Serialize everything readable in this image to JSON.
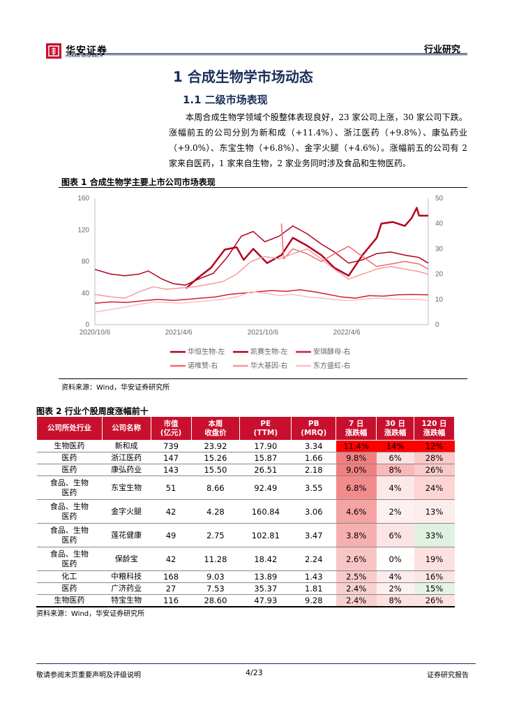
{
  "header": {
    "logo_text": "华安证券",
    "logo_sub": "HUAAN RESEARCH",
    "section": "行业研究"
  },
  "h1": "1 合成生物学市场动态",
  "h2": "1.1 二级市场表现",
  "paragraph": "本周合成生物学领域个股整体表现良好，23 家公司上涨，30 家公司下跌。涨幅前五的公司分别为新和成（+11.4%）、浙江医药（+9.8%）、康弘药业（+9.0%）、东宝生物（+6.8%）、金字火腿（+4.6%）。涨幅前五的公司有 2 家来自医药，1 家来自生物，2 家业务同时涉及食品和生物医药。",
  "figure1": {
    "title": "图表 1 合成生物学主要上市公司市场表现",
    "source": "资料来源：Wind，华安证券研究所"
  },
  "chart_data": {
    "type": "line",
    "x_ticks": [
      "2020/10/6",
      "2021/4/6",
      "2021/10/6",
      "2022/4/6"
    ],
    "x_range": [
      "2020/10/6",
      "2022/9/30"
    ],
    "ylim_left": [
      0,
      160
    ],
    "yticks_left": [
      0,
      40,
      80,
      120,
      160
    ],
    "ylim_right": [
      0,
      50
    ],
    "yticks_right": [
      0,
      10,
      20,
      30,
      40,
      50
    ],
    "legend_position": "bottom",
    "series": [
      {
        "name": "华恒生物-左",
        "axis": "left",
        "color": "#b3001b",
        "width": 2.5,
        "points": [
          [
            "2021/4/22",
            46
          ],
          [
            "2021/5/15",
            58
          ],
          [
            "2021/6/15",
            72
          ],
          [
            "2021/7/15",
            95
          ],
          [
            "2021/8/10",
            98
          ],
          [
            "2021/8/25",
            82
          ],
          [
            "2021/9/15",
            96
          ],
          [
            "2021/10/15",
            78
          ],
          [
            "2021/11/15",
            88
          ],
          [
            "2021/12/10",
            110
          ],
          [
            "2022/1/10",
            100
          ],
          [
            "2022/2/10",
            88
          ],
          [
            "2022/3/10",
            72
          ],
          [
            "2022/4/10",
            62
          ],
          [
            "2022/5/10",
            88
          ],
          [
            "2022/6/10",
            110
          ],
          [
            "2022/6/20",
            128
          ],
          [
            "2022/7/15",
            130
          ],
          [
            "2022/8/10",
            125
          ],
          [
            "2022/8/25",
            135
          ],
          [
            "2022/9/5",
            148
          ],
          [
            "2022/9/10",
            138
          ],
          [
            "2022/9/30",
            138
          ]
        ]
      },
      {
        "name": "凯赛生物-左",
        "axis": "left",
        "color": "#b3001b",
        "width": 1.5,
        "points": [
          [
            "2020/10/6",
            70
          ],
          [
            "2020/11/10",
            64
          ],
          [
            "2020/12/10",
            62
          ],
          [
            "2021/1/10",
            64
          ],
          [
            "2021/1/30",
            68
          ],
          [
            "2021/2/28",
            58
          ],
          [
            "2021/3/25",
            52
          ],
          [
            "2021/4/20",
            50
          ],
          [
            "2021/5/20",
            58
          ],
          [
            "2021/6/20",
            65
          ],
          [
            "2021/7/20",
            85
          ],
          [
            "2021/8/20",
            112
          ],
          [
            "2021/9/15",
            118
          ],
          [
            "2021/10/10",
            105
          ],
          [
            "2021/11/10",
            112
          ],
          [
            "2021/12/10",
            125
          ],
          [
            "2022/1/10",
            115
          ],
          [
            "2022/2/10",
            102
          ],
          [
            "2022/3/10",
            92
          ],
          [
            "2022/4/10",
            78
          ],
          [
            "2022/5/10",
            82
          ],
          [
            "2022/6/10",
            90
          ],
          [
            "2022/7/10",
            92
          ],
          [
            "2022/8/10",
            88
          ],
          [
            "2022/9/10",
            85
          ],
          [
            "2022/9/30",
            78
          ]
        ]
      },
      {
        "name": "安琪酵母-右",
        "axis": "right",
        "color": "#d21e32",
        "width": 1.5,
        "points": [
          [
            "2020/10/6",
            8.5
          ],
          [
            "2020/11/10",
            9
          ],
          [
            "2020/12/15",
            8.8
          ],
          [
            "2021/1/20",
            9.5
          ],
          [
            "2021/2/20",
            10
          ],
          [
            "2021/3/25",
            9.6
          ],
          [
            "2021/4/25",
            10
          ],
          [
            "2021/5/25",
            10.5
          ],
          [
            "2021/6/25",
            11
          ],
          [
            "2021/7/25",
            12
          ],
          [
            "2021/8/25",
            12.5
          ],
          [
            "2021/9/25",
            13
          ],
          [
            "2021/10/25",
            13.5
          ],
          [
            "2021/11/25",
            13.2
          ],
          [
            "2021/12/25",
            13.8
          ],
          [
            "2022/1/25",
            13
          ],
          [
            "2022/2/25",
            12
          ],
          [
            "2022/3/25",
            11
          ],
          [
            "2022/4/25",
            10.5
          ],
          [
            "2022/5/25",
            11.5
          ],
          [
            "2022/6/25",
            11.3
          ],
          [
            "2022/7/25",
            11.8
          ],
          [
            "2022/8/25",
            12
          ],
          [
            "2022/9/30",
            11.8
          ]
        ]
      },
      {
        "name": "诺唯赞-右",
        "axis": "right",
        "color": "#ee6a6a",
        "width": 1.5,
        "points": [
          [
            "2021/11/15",
            40
          ],
          [
            "2021/11/20",
            26
          ],
          [
            "2021/12/10",
            30
          ],
          [
            "2022/1/10",
            28
          ],
          [
            "2022/2/10",
            25
          ],
          [
            "2022/3/10",
            28
          ],
          [
            "2022/4/10",
            31
          ],
          [
            "2022/5/10",
            27
          ],
          [
            "2022/6/10",
            23
          ],
          [
            "2022/7/10",
            24
          ],
          [
            "2022/8/10",
            25
          ],
          [
            "2022/9/10",
            24
          ],
          [
            "2022/9/30",
            22
          ]
        ]
      },
      {
        "name": "华大基因-右",
        "axis": "right",
        "color": "#f39a9a",
        "width": 1.5,
        "points": [
          [
            "2020/10/6",
            12
          ],
          [
            "2020/11/10",
            11
          ],
          [
            "2020/12/10",
            10.5
          ],
          [
            "2021/1/10",
            13
          ],
          [
            "2021/2/10",
            15
          ],
          [
            "2021/3/10",
            14
          ],
          [
            "2021/4/10",
            14.5
          ],
          [
            "2021/5/10",
            15
          ],
          [
            "2021/6/10",
            16
          ],
          [
            "2021/7/10",
            17
          ],
          [
            "2021/8/10",
            20
          ],
          [
            "2021/9/10",
            25
          ],
          [
            "2021/10/10",
            27
          ],
          [
            "2021/11/10",
            26
          ],
          [
            "2021/12/10",
            28
          ],
          [
            "2022/1/10",
            30
          ],
          [
            "2022/2/10",
            26
          ],
          [
            "2022/3/10",
            22
          ],
          [
            "2022/4/10",
            18
          ],
          [
            "2022/5/10",
            20
          ],
          [
            "2022/6/10",
            22
          ],
          [
            "2022/7/10",
            23
          ],
          [
            "2022/8/10",
            22
          ],
          [
            "2022/9/10",
            21
          ],
          [
            "2022/9/30",
            20
          ]
        ]
      },
      {
        "name": "东方盛虹-右",
        "axis": "right",
        "color": "#f9c0c0",
        "width": 1.5,
        "points": [
          [
            "2020/10/6",
            5
          ],
          [
            "2020/11/10",
            6
          ],
          [
            "2020/12/10",
            7
          ],
          [
            "2021/1/10",
            8
          ],
          [
            "2021/2/10",
            9
          ],
          [
            "2021/3/10",
            8.8
          ],
          [
            "2021/4/10",
            8.5
          ],
          [
            "2021/5/10",
            9
          ],
          [
            "2021/6/10",
            9.5
          ],
          [
            "2021/7/10",
            10
          ],
          [
            "2021/8/10",
            11
          ],
          [
            "2021/9/10",
            13
          ],
          [
            "2021/10/10",
            12.5
          ],
          [
            "2021/11/10",
            11.5
          ],
          [
            "2021/12/10",
            12
          ],
          [
            "2022/1/10",
            11
          ],
          [
            "2022/2/10",
            10.5
          ],
          [
            "2022/3/10",
            10
          ],
          [
            "2022/4/10",
            9.5
          ],
          [
            "2022/5/10",
            10
          ],
          [
            "2022/6/10",
            10.5
          ],
          [
            "2022/7/10",
            10.2
          ],
          [
            "2022/8/10",
            10
          ],
          [
            "2022/9/10",
            10
          ],
          [
            "2022/9/30",
            9.5
          ]
        ]
      }
    ]
  },
  "table": {
    "title": "图表 2 行业个股周度涨幅前十",
    "headers": [
      "公司所处行业",
      "公司名称",
      "市值\n(亿元)",
      "本周\n收盘价",
      "PE\n(TTM)",
      "PB\n(MRQ)",
      "7 日\n涨跌幅",
      "30 日\n涨跌幅",
      "120 日\n涨跌幅"
    ],
    "rows": [
      [
        "生物医药",
        "新和成",
        "739",
        "23.92",
        "17.90",
        "3.34",
        "11.4%",
        "14%",
        "12%"
      ],
      [
        "医药",
        "浙江医药",
        "147",
        "15.26",
        "15.87",
        "1.66",
        "9.8%",
        "6%",
        "28%"
      ],
      [
        "医药",
        "康弘药业",
        "143",
        "15.50",
        "26.51",
        "2.18",
        "9.0%",
        "8%",
        "26%"
      ],
      [
        "食品、生物医药",
        "东宝生物",
        "51",
        "8.66",
        "92.49",
        "3.55",
        "6.8%",
        "4%",
        "24%"
      ],
      [
        "食品、生物医药",
        "金字火腿",
        "42",
        "4.28",
        "160.84",
        "3.06",
        "4.6%",
        "2%",
        "13%"
      ],
      [
        "食品、生物医药",
        "莲花健康",
        "49",
        "2.75",
        "102.81",
        "3.47",
        "3.8%",
        "6%",
        "33%"
      ],
      [
        "食品、生物医药",
        "保龄宝",
        "42",
        "11.28",
        "18.42",
        "2.24",
        "2.6%",
        "0%",
        "19%"
      ],
      [
        "化工",
        "中粮科技",
        "168",
        "9.03",
        "13.89",
        "1.43",
        "2.5%",
        "4%",
        "16%"
      ],
      [
        "医药",
        "广济药业",
        "27",
        "7.53",
        "35.37",
        "1.81",
        "2.4%",
        "2%",
        "15%"
      ],
      [
        "生物医药",
        "特宝生物",
        "116",
        "28.60",
        "47.93",
        "9.28",
        "2.4%",
        "8%",
        "26%"
      ]
    ],
    "cell_colors": [
      [
        "#f00",
        "#f00",
        "#f00"
      ],
      [
        "#f08080",
        "#fde2e2",
        "#fbc9c9"
      ],
      [
        "#f08080",
        "#fbb8b8",
        "#fbcaca"
      ],
      [
        "#f28c8c",
        "#fde8e8",
        "#fdd5d5"
      ],
      [
        "#f5a3a3",
        "#fdf0f0",
        "#fdecec"
      ],
      [
        "#f6b0b0",
        "#fde4e4",
        "#dff2e1"
      ],
      [
        "#f8c5c5",
        "#ffffff",
        "#fde0e0"
      ],
      [
        "#f8caca",
        "#fdebeb",
        "#fbe4e4"
      ],
      [
        "#f9d0d0",
        "#fdf0f0",
        "#e3f3e5"
      ],
      [
        "#f9d0d0",
        "#fde0e0",
        "#fde2e2"
      ]
    ],
    "source": "资料来源：Wind，华安证券研究所"
  },
  "footer": {
    "left": "敬请参阅末页重要声明及评级说明",
    "page": "4/23",
    "right": "证券研究报告"
  }
}
